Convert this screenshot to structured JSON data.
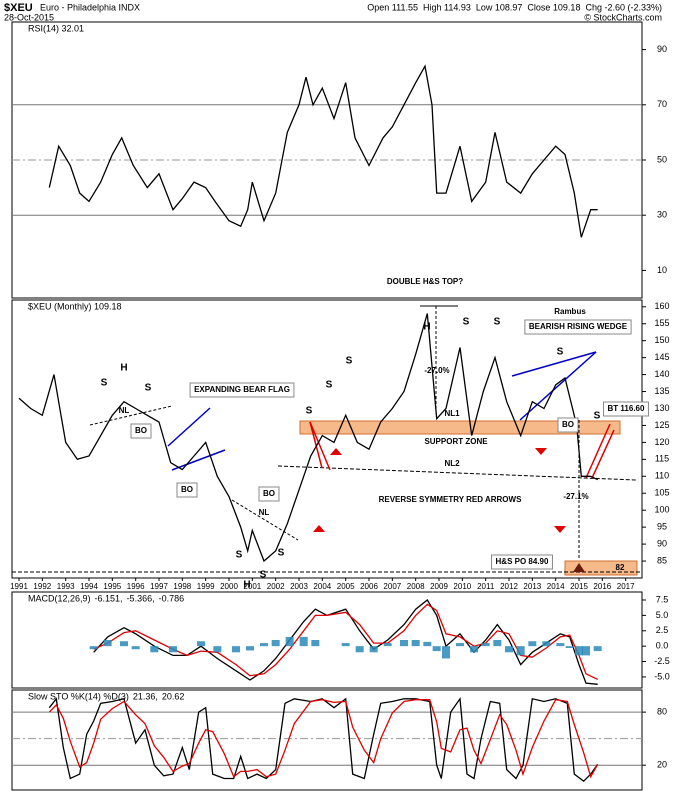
{
  "header": {
    "symbol": "$XEU",
    "name": "Euro - Philadelphia INDX",
    "date": "28-Oct-2015",
    "quote": [
      "Open 111.55",
      "High 114.93",
      "Low 108.97",
      "Close 109.18",
      "Chg -2.60 (-2.33%)"
    ],
    "source": "© StockCharts.com"
  },
  "chart_data": [
    {
      "type": "line",
      "title": "RSI(14) 32.01",
      "xlim": [
        1990.7,
        2017.7
      ],
      "ylim": [
        0,
        100
      ],
      "yticks": [
        10,
        30,
        50,
        70,
        90
      ],
      "solid_levels": [
        30,
        70
      ],
      "dashed_levels": [
        50
      ],
      "series": [
        {
          "name": "RSI(14)",
          "color": "#000000",
          "x": [
            1992.3,
            1992.7,
            1993.2,
            1993.6,
            1994.0,
            1994.5,
            1995.0,
            1995.4,
            1995.9,
            1996.5,
            1997.0,
            1997.6,
            1998.0,
            1998.5,
            1999.0,
            1999.4,
            2000.0,
            2000.5,
            2000.8,
            2001.0,
            2001.5,
            2002.0,
            2002.5,
            2003.0,
            2003.3,
            2003.6,
            2004.0,
            2004.5,
            2005.0,
            2005.4,
            2006.0,
            2006.6,
            2007.0,
            2007.5,
            2008.0,
            2008.4,
            2008.7,
            2008.9,
            2009.3,
            2009.9,
            2010.4,
            2011.0,
            2011.4,
            2011.9,
            2012.5,
            2013.0,
            2013.5,
            2014.0,
            2014.4,
            2014.8,
            2015.1,
            2015.5,
            2015.8
          ],
          "values": [
            40,
            55,
            48,
            38,
            35,
            42,
            52,
            58,
            48,
            40,
            45,
            32,
            36,
            42,
            40,
            35,
            28,
            26,
            32,
            42,
            28,
            38,
            60,
            70,
            80,
            70,
            76,
            65,
            78,
            58,
            48,
            58,
            62,
            70,
            78,
            84,
            70,
            38,
            38,
            55,
            35,
            42,
            60,
            42,
            38,
            45,
            50,
            55,
            52,
            38,
            22,
            32,
            32
          ]
        }
      ]
    },
    {
      "type": "line",
      "title": "$XEU (Monthly) 109.18",
      "xlim": [
        1990.7,
        2017.7
      ],
      "ylim": [
        80,
        162
      ],
      "yticks": [
        85,
        90,
        95,
        100,
        105,
        110,
        115,
        120,
        125,
        130,
        135,
        140,
        145,
        150,
        155,
        160
      ],
      "xticks": [
        1991,
        1992,
        1993,
        1994,
        1995,
        1996,
        1997,
        1998,
        1999,
        2000,
        2001,
        2002,
        2003,
        2004,
        2005,
        2006,
        2007,
        2008,
        2009,
        2010,
        2011,
        2012,
        2013,
        2014,
        2015,
        2016,
        2017
      ],
      "series": [
        {
          "name": "$XEU",
          "color": "#000000",
          "x": [
            1991.0,
            1991.5,
            1992.0,
            1992.5,
            1992.8,
            1993.0,
            1993.5,
            1994.0,
            1994.5,
            1995.0,
            1995.5,
            1996.0,
            1996.5,
            1997.0,
            1997.5,
            1998.0,
            1998.5,
            1999.0,
            1999.5,
            2000.0,
            2000.5,
            2000.8,
            2001.0,
            2001.5,
            2002.0,
            2002.5,
            2003.0,
            2003.5,
            2004.0,
            2004.5,
            2005.0,
            2005.5,
            2006.0,
            2006.5,
            2007.0,
            2007.5,
            2008.0,
            2008.5,
            2008.9,
            2009.3,
            2009.9,
            2010.4,
            2010.9,
            2011.4,
            2011.9,
            2012.5,
            2013.0,
            2013.5,
            2014.0,
            2014.4,
            2014.9,
            2015.1,
            2015.5,
            2015.8
          ],
          "values": [
            133,
            130,
            128,
            140,
            128,
            120,
            115,
            116,
            122,
            128,
            132,
            130,
            128,
            126,
            114,
            112,
            116,
            120,
            110,
            104,
            95,
            88,
            94,
            85,
            88,
            96,
            106,
            116,
            122,
            120,
            128,
            120,
            118,
            126,
            130,
            135,
            146,
            158,
            127,
            130,
            148,
            122,
            135,
            145,
            132,
            122,
            132,
            130,
            137,
            139,
            125,
            110,
            110,
            109
          ]
        }
      ],
      "annotations": [
        "DOUBLE H&S TOP?",
        "H",
        "S",
        "S",
        "NL",
        "BO",
        "EXPANDING BEAR FLAG",
        "BO",
        "BO",
        "NL",
        "S",
        "S",
        "H",
        "S",
        "S",
        "S",
        "S",
        "H",
        "S",
        "S",
        "-27.0%",
        "NL1",
        "SUPPORT ZONE",
        "NL2",
        "-27.1%",
        "REVERSE SYMMETRY RED ARROWS",
        "Rambus",
        "BEARISH RISING WEDGE",
        "S",
        "BO",
        "S",
        "BT 116.60",
        "H&S PO 84.90",
        "82"
      ]
    },
    {
      "type": "line",
      "title_parts": [
        {
          "text": "MACD(12,26,9)",
          "color": "#000000"
        },
        {
          "text": "-6.151,",
          "color": "#000000"
        },
        {
          "text": "-5.366,",
          "color": "#e00000"
        },
        {
          "text": "-0.786",
          "color": "#2a8ab8"
        }
      ],
      "xlim": [
        1990.7,
        2017.7
      ],
      "ylim": [
        -6.8,
        8.8
      ],
      "yticks": [
        {
          "value": 7.5,
          "label": "7.5"
        },
        {
          "value": 5,
          "label": "5.0"
        },
        {
          "value": 2.5,
          "label": "2.5"
        },
        {
          "value": 0,
          "label": "0.0"
        },
        {
          "value": -2.5,
          "label": "-2.5"
        },
        {
          "value": -5,
          "label": "-5.0"
        }
      ],
      "series": [
        {
          "name": "MACD",
          "color": "#000000",
          "x": [
            1994.2,
            1994.8,
            1995.5,
            1996.0,
            1996.8,
            1997.6,
            1998.2,
            1998.8,
            1999.5,
            2000.3,
            2000.9,
            2001.5,
            2002.0,
            2002.6,
            2003.2,
            2003.7,
            2004.2,
            2005.0,
            2005.6,
            2006.2,
            2006.8,
            2007.5,
            2008.0,
            2008.5,
            2008.9,
            2009.3,
            2009.9,
            2010.5,
            2011.0,
            2011.5,
            2012.0,
            2012.5,
            2013.0,
            2013.6,
            2014.2,
            2014.6,
            2015.0,
            2015.3,
            2015.8
          ],
          "values": [
            -1,
            1.5,
            3,
            2,
            0,
            -1.5,
            -1.5,
            0,
            -2,
            -4,
            -5.5,
            -4,
            -2,
            1,
            4,
            6,
            5,
            6,
            2.5,
            -0.5,
            1,
            3.5,
            6,
            7.5,
            5,
            0,
            2,
            -1,
            1,
            3.5,
            1,
            -3,
            -1,
            0.5,
            2,
            1.5,
            -3,
            -6,
            -6.2
          ]
        },
        {
          "name": "Signal",
          "color": "#e00000",
          "x": [
            1994.2,
            1994.8,
            1995.5,
            1996.0,
            1996.8,
            1997.6,
            1998.2,
            1998.8,
            1999.5,
            2000.3,
            2000.9,
            2001.5,
            2002.0,
            2002.6,
            2003.2,
            2003.7,
            2004.2,
            2005.0,
            2005.6,
            2006.2,
            2006.8,
            2007.5,
            2008.0,
            2008.5,
            2008.9,
            2009.3,
            2009.9,
            2010.5,
            2011.0,
            2011.5,
            2012.0,
            2012.5,
            2013.0,
            2013.6,
            2014.2,
            2014.6,
            2015.0,
            2015.3,
            2015.8
          ],
          "values": [
            -0.5,
            0.5,
            2.2,
            2.5,
            1,
            -0.5,
            -1.5,
            -0.8,
            -1,
            -3,
            -4.8,
            -4.5,
            -3,
            -0.5,
            2.5,
            5,
            5,
            5.5,
            3.5,
            0.5,
            0.5,
            2.5,
            5,
            6.8,
            5.8,
            2,
            1.5,
            0,
            0.5,
            2.5,
            2,
            -1.5,
            -1.8,
            -0.3,
            1.5,
            1.8,
            -1.5,
            -4.5,
            -5.4
          ]
        },
        {
          "name": "Histogram",
          "color": "#2a8ab8",
          "style": "bars",
          "x": [
            1994.2,
            1994.8,
            1995.5,
            1996.0,
            1996.8,
            1997.6,
            1998.2,
            1998.8,
            1999.5,
            2000.3,
            2000.9,
            2001.5,
            2002.0,
            2002.6,
            2003.2,
            2003.7,
            2004.2,
            2005.0,
            2005.6,
            2006.2,
            2006.8,
            2007.5,
            2008.0,
            2008.5,
            2008.9,
            2009.3,
            2009.9,
            2010.5,
            2011.0,
            2011.5,
            2012.0,
            2012.5,
            2013.0,
            2013.6,
            2014.2,
            2014.6,
            2015.0,
            2015.3,
            2015.8
          ],
          "values": [
            -0.5,
            1,
            0.8,
            -0.5,
            -1,
            -1,
            0,
            0.8,
            -1,
            -1,
            -0.7,
            0.5,
            1,
            1.5,
            1.5,
            1,
            0,
            0.5,
            -1,
            -1,
            0.5,
            1,
            1,
            0.7,
            -0.8,
            -2,
            0.5,
            -1,
            0.5,
            1,
            -1,
            -1.5,
            0.8,
            0.8,
            0.5,
            -0.3,
            -1.5,
            -1.5,
            -0.8
          ]
        }
      ]
    },
    {
      "type": "line",
      "title_parts": [
        {
          "text": "Slow STO %K(14) %D(3)",
          "color": "#000000"
        },
        {
          "text": "21.36,",
          "color": "#000000"
        },
        {
          "text": "20.62",
          "color": "#e00000"
        }
      ],
      "xlim": [
        1990.7,
        2017.7
      ],
      "ylim": [
        -8,
        105
      ],
      "yticks": [
        20,
        80
      ],
      "solid_levels": [
        20,
        80
      ],
      "dashed_levels": [
        50
      ],
      "series": [
        {
          "name": "%K",
          "color": "#000000",
          "x": [
            1992.3,
            1992.6,
            1992.9,
            1993.2,
            1993.6,
            1993.9,
            1994.2,
            1994.5,
            1995.0,
            1995.5,
            1996.0,
            1996.4,
            1996.8,
            1997.2,
            1997.6,
            1998.0,
            1998.3,
            1998.7,
            1999.0,
            1999.3,
            1999.8,
            2000.2,
            2000.5,
            2000.8,
            2001.2,
            2001.6,
            2002.0,
            2002.4,
            2002.8,
            2003.5,
            2004.0,
            2004.5,
            2005.0,
            2005.3,
            2005.8,
            2006.2,
            2006.5,
            2007.0,
            2007.5,
            2008.0,
            2008.6,
            2008.9,
            2009.1,
            2009.5,
            2009.9,
            2010.2,
            2010.5,
            2010.8,
            2011.2,
            2011.6,
            2011.9,
            2012.3,
            2012.6,
            2013.0,
            2013.5,
            2014.0,
            2014.5,
            2014.8,
            2015.2,
            2015.5,
            2015.8
          ],
          "values": [
            85,
            95,
            40,
            5,
            10,
            55,
            70,
            90,
            92,
            95,
            45,
            60,
            20,
            8,
            10,
            40,
            15,
            80,
            85,
            10,
            5,
            5,
            30,
            5,
            10,
            5,
            15,
            90,
            95,
            92,
            95,
            85,
            95,
            10,
            5,
            55,
            90,
            92,
            95,
            95,
            92,
            20,
            5,
            80,
            95,
            10,
            5,
            50,
            92,
            90,
            15,
            5,
            20,
            95,
            92,
            95,
            90,
            10,
            2,
            10,
            21
          ]
        },
        {
          "name": "%D",
          "color": "#e00000",
          "x": [
            1992.3,
            1992.6,
            1992.9,
            1993.2,
            1993.6,
            1993.9,
            1994.2,
            1994.5,
            1995.0,
            1995.5,
            1996.0,
            1996.4,
            1996.8,
            1997.2,
            1997.6,
            1998.0,
            1998.3,
            1998.7,
            1999.0,
            1999.3,
            1999.8,
            2000.2,
            2000.5,
            2000.8,
            2001.2,
            2001.6,
            2002.0,
            2002.4,
            2002.8,
            2003.5,
            2004.0,
            2004.5,
            2005.0,
            2005.3,
            2005.8,
            2006.2,
            2006.5,
            2007.0,
            2007.5,
            2008.0,
            2008.6,
            2008.9,
            2009.1,
            2009.5,
            2009.9,
            2010.2,
            2010.5,
            2010.8,
            2011.2,
            2011.6,
            2011.9,
            2012.3,
            2012.6,
            2013.0,
            2013.5,
            2014.0,
            2014.5,
            2014.8,
            2015.2,
            2015.5,
            2015.8
          ],
          "values": [
            80,
            88,
            73,
            47,
            18,
            23,
            45,
            72,
            84,
            92,
            77,
            67,
            42,
            29,
            13,
            19,
            22,
            45,
            60,
            58,
            33,
            7,
            13,
            13,
            15,
            7,
            10,
            37,
            67,
            92,
            94,
            91,
            92,
            63,
            37,
            23,
            50,
            79,
            92,
            94,
            94,
            69,
            39,
            35,
            60,
            62,
            37,
            22,
            49,
            77,
            66,
            37,
            10,
            40,
            70,
            94,
            92,
            66,
            34,
            7,
            21
          ]
        }
      ]
    }
  ]
}
